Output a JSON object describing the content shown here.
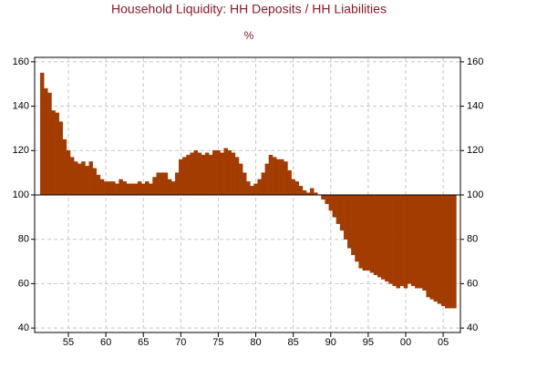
{
  "chart_data": {
    "type": "bar",
    "title": "Household Liquidity: HH Deposits / HH Liabilities",
    "subtitle": "%",
    "color": "#a33c00",
    "baseline": 100,
    "grid": true,
    "xlim": [
      1950.5,
      2007.3
    ],
    "xticks": [
      {
        "value": 1955,
        "label": "55"
      },
      {
        "value": 1960,
        "label": "60"
      },
      {
        "value": 1965,
        "label": "65"
      },
      {
        "value": 1970,
        "label": "70"
      },
      {
        "value": 1975,
        "label": "75"
      },
      {
        "value": 1980,
        "label": "80"
      },
      {
        "value": 1985,
        "label": "85"
      },
      {
        "value": 1990,
        "label": "90"
      },
      {
        "value": 1995,
        "label": "95"
      },
      {
        "value": 2000,
        "label": "00"
      },
      {
        "value": 2005,
        "label": "05"
      }
    ],
    "ylim": [
      38,
      162
    ],
    "yticks": [
      40,
      60,
      80,
      100,
      120,
      140,
      160
    ],
    "y2lim": [
      38,
      162
    ],
    "y2ticks": [
      40,
      60,
      80,
      100,
      120,
      140,
      160
    ],
    "x": [
      1951.5,
      1952,
      1952.5,
      1953,
      1953.5,
      1954,
      1954.5,
      1955,
      1955.5,
      1956,
      1956.5,
      1957,
      1957.5,
      1958,
      1958.5,
      1959,
      1959.5,
      1960,
      1960.5,
      1961,
      1961.5,
      1962,
      1962.5,
      1963,
      1963.5,
      1964,
      1964.5,
      1965,
      1965.5,
      1966,
      1966.5,
      1967,
      1967.5,
      1968,
      1968.5,
      1969,
      1969.5,
      1970,
      1970.5,
      1971,
      1971.5,
      1972,
      1972.5,
      1973,
      1973.5,
      1974,
      1974.5,
      1975,
      1975.5,
      1976,
      1976.5,
      1977,
      1977.5,
      1978,
      1978.5,
      1979,
      1979.5,
      1980,
      1980.5,
      1981,
      1981.5,
      1982,
      1982.5,
      1983,
      1983.5,
      1984,
      1984.5,
      1985,
      1985.5,
      1986,
      1986.5,
      1987,
      1987.5,
      1988,
      1988.5,
      1989,
      1989.5,
      1990,
      1990.5,
      1991,
      1991.5,
      1992,
      1992.5,
      1993,
      1993.5,
      1994,
      1994.5,
      1995,
      1995.5,
      1996,
      1996.5,
      1997,
      1997.5,
      1998,
      1998.5,
      1999,
      1999.5,
      2000,
      2000.5,
      2001,
      2001.5,
      2002,
      2002.5,
      2003,
      2003.5,
      2004,
      2004.5,
      2005,
      2005.5,
      2006,
      2006.5
    ],
    "values": [
      155,
      148,
      146,
      138,
      137,
      133,
      125,
      120,
      117,
      115,
      114,
      115,
      113,
      115,
      112,
      109,
      107,
      106,
      106,
      106,
      105,
      107,
      106,
      105,
      105,
      105,
      106,
      105,
      106,
      105,
      108,
      110,
      110,
      110,
      107,
      106,
      110,
      116,
      117,
      118,
      119,
      120,
      119,
      118,
      119,
      118,
      120,
      120,
      119,
      121,
      120,
      119,
      117,
      114,
      110,
      106,
      104,
      105,
      107,
      110,
      114,
      118,
      117,
      116,
      116,
      115,
      111,
      107,
      106,
      104,
      102,
      101,
      103,
      101,
      100,
      98,
      96,
      93,
      90,
      87,
      84,
      80,
      76,
      73,
      70,
      67,
      66,
      66,
      65,
      64,
      63,
      62,
      61,
      60,
      59,
      58,
      59,
      58,
      60,
      59,
      58,
      58,
      57,
      54,
      53,
      52,
      51,
      50,
      49,
      49,
      49
    ]
  }
}
